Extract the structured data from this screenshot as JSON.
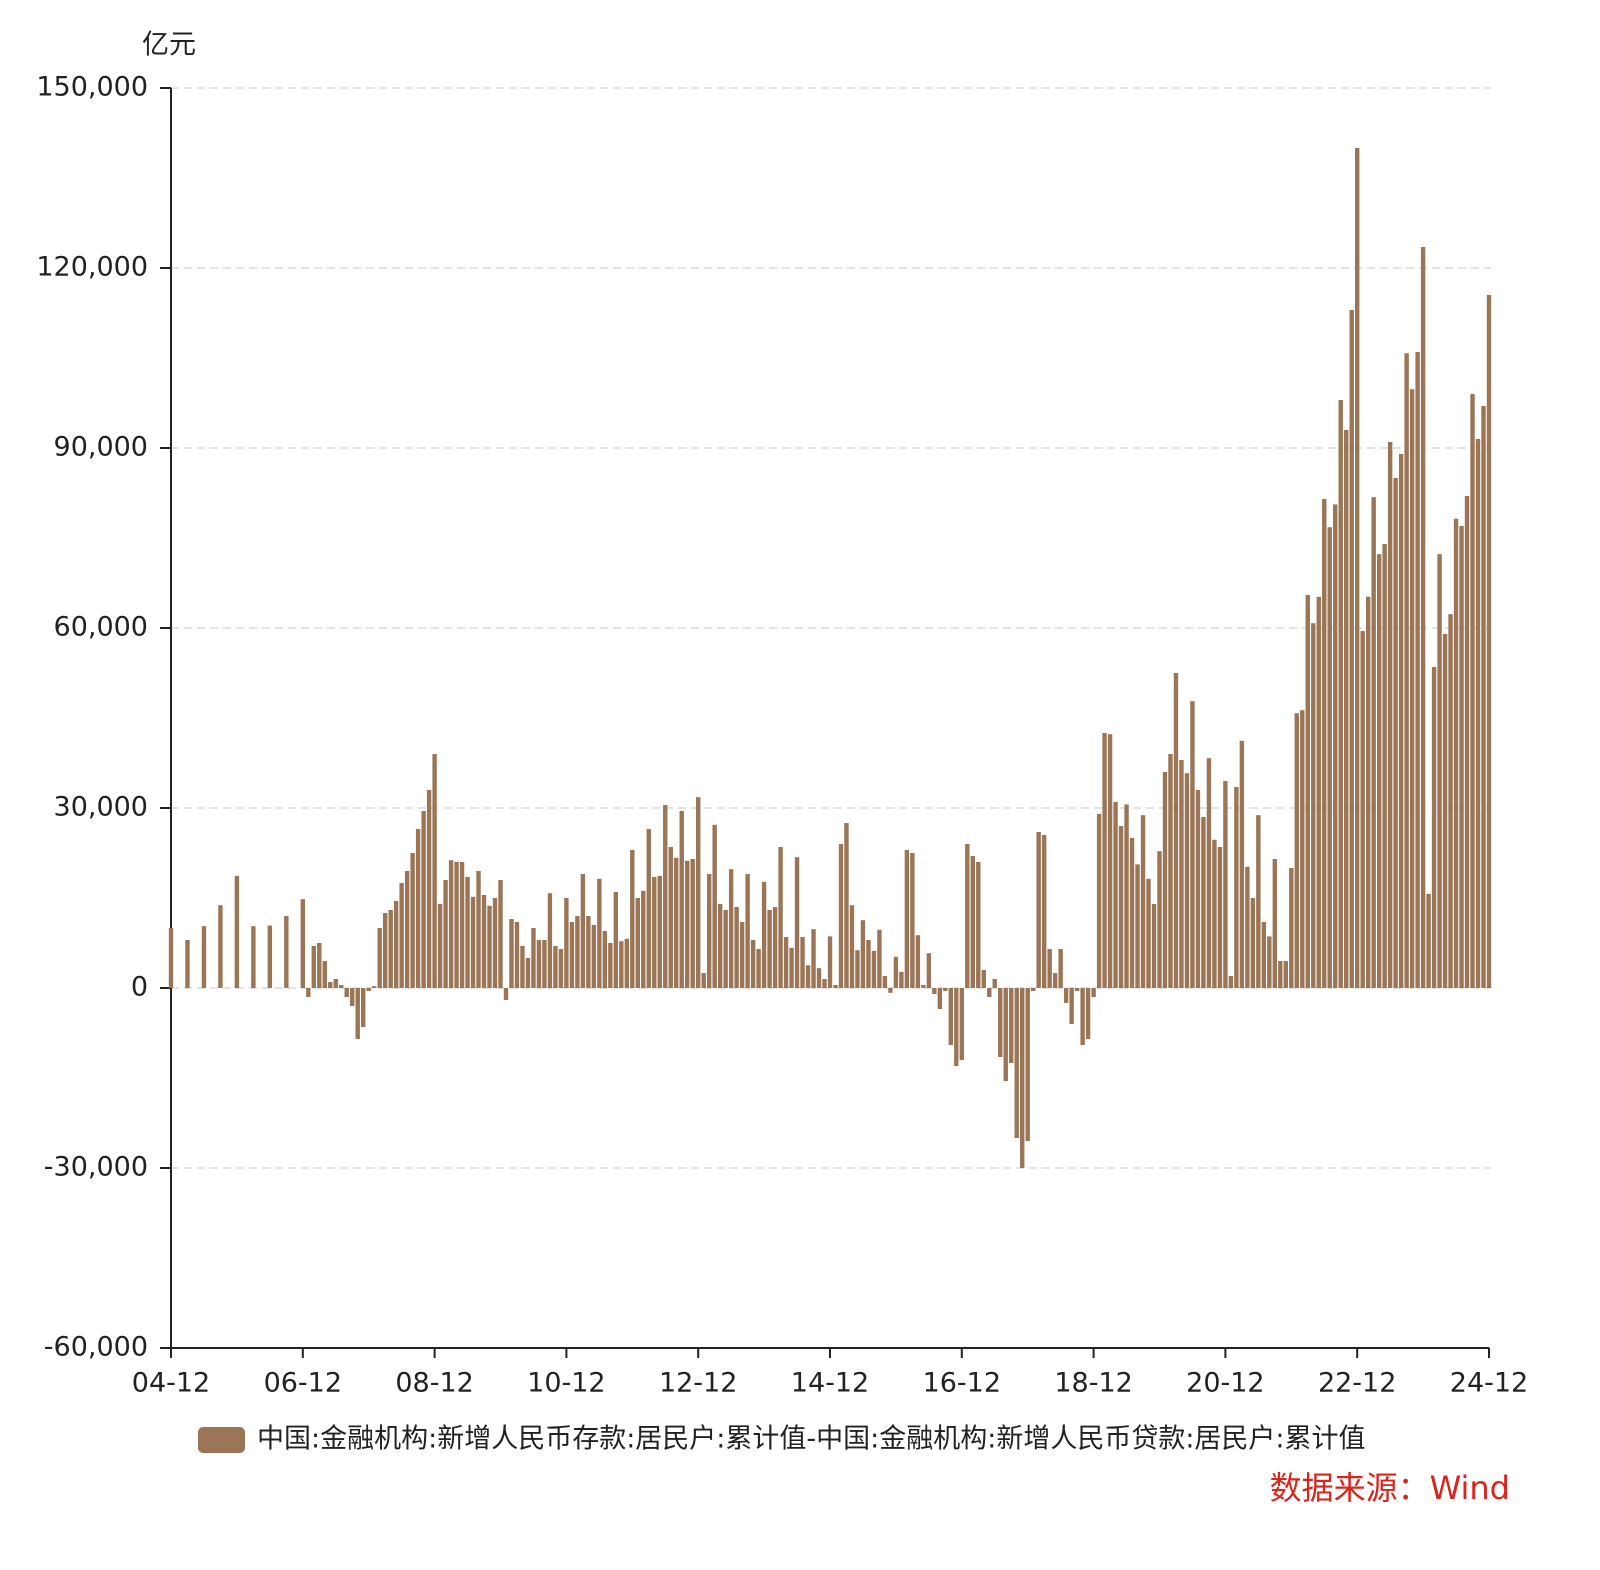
{
  "chart_data": {
    "type": "bar",
    "y_label": "亿元",
    "source": "数据来源：Wind",
    "categories": [
      "04-12",
      null,
      null,
      null,
      null,
      null,
      null,
      null,
      null,
      null,
      null,
      null,
      null,
      null,
      null,
      null,
      null,
      null,
      null,
      null,
      null,
      null,
      null,
      null,
      "06-12",
      null,
      null,
      null,
      null,
      null,
      null,
      null,
      null,
      null,
      null,
      null,
      null,
      null,
      null,
      null,
      null,
      null,
      null,
      null,
      null,
      null,
      null,
      null,
      "08-12",
      null,
      null,
      null,
      null,
      null,
      null,
      null,
      null,
      null,
      null,
      null,
      null,
      null,
      null,
      null,
      null,
      null,
      null,
      null,
      null,
      null,
      null,
      null,
      "10-12",
      null,
      null,
      null,
      null,
      null,
      null,
      null,
      null,
      null,
      null,
      null,
      null,
      null,
      null,
      null,
      null,
      null,
      null,
      null,
      null,
      null,
      null,
      null,
      "12-12",
      null,
      null,
      null,
      null,
      null,
      null,
      null,
      null,
      null,
      null,
      null,
      null,
      null,
      null,
      null,
      null,
      null,
      null,
      null,
      null,
      null,
      null,
      null,
      "14-12",
      null,
      null,
      null,
      null,
      null,
      null,
      null,
      null,
      null,
      null,
      null,
      null,
      null,
      null,
      null,
      null,
      null,
      null,
      null,
      null,
      null,
      null,
      null,
      "16-12",
      null,
      null,
      null,
      null,
      null,
      null,
      null,
      null,
      null,
      null,
      null,
      null,
      null,
      null,
      null,
      null,
      null,
      null,
      null,
      null,
      null,
      null,
      null,
      "18-12",
      null,
      null,
      null,
      null,
      null,
      null,
      null,
      null,
      null,
      null,
      null,
      null,
      null,
      null,
      null,
      null,
      null,
      null,
      null,
      null,
      null,
      null,
      null,
      "20-12",
      null,
      null,
      null,
      null,
      null,
      null,
      null,
      null,
      null,
      null,
      null,
      null,
      null,
      null,
      null,
      null,
      null,
      null,
      null,
      null,
      null,
      null,
      null,
      "22-12",
      null,
      null,
      null,
      null,
      null,
      null,
      null,
      null,
      null,
      null,
      null,
      null,
      null,
      null,
      null,
      null,
      null,
      null,
      null,
      null,
      null,
      null,
      null,
      "24-12"
    ],
    "series": [
      {
        "name": "中国:金融机构:新增人民币存款:居民户:累计值-中国:金融机构:新增人民币贷款:居民户:累计值",
        "color": "#9a7556",
        "values": [
          10000,
          null,
          null,
          8000,
          null,
          null,
          10300,
          null,
          null,
          13800,
          null,
          null,
          18700,
          null,
          null,
          10300,
          null,
          null,
          10400,
          null,
          null,
          12000,
          null,
          null,
          14800,
          -1500,
          7000,
          7500,
          4500,
          1000,
          1500,
          500,
          -1500,
          -3000,
          -8500,
          -6500,
          -500,
          300,
          10000,
          12500,
          13000,
          14500,
          17500,
          19500,
          22500,
          26500,
          29500,
          33000,
          39000,
          14000,
          18000,
          21300,
          21000,
          21000,
          18500,
          15200,
          19500,
          15500,
          13700,
          15000,
          18000,
          -2000,
          11500,
          11000,
          7000,
          5000,
          10000,
          8000,
          8000,
          15800,
          7000,
          6500,
          15000,
          11000,
          12000,
          19000,
          12000,
          10500,
          18200,
          9500,
          7500,
          16000,
          7800,
          8200,
          23000,
          15000,
          16200,
          26500,
          18500,
          18700,
          30500,
          23500,
          21700,
          29500,
          21200,
          21500,
          31800,
          2500,
          19000,
          27200,
          14000,
          13000,
          19800,
          13500,
          11000,
          19000,
          8000,
          6500,
          17700,
          13000,
          13500,
          23500,
          8500,
          6700,
          21800,
          8500,
          3800,
          9800,
          3300,
          1500,
          8600,
          500,
          24000,
          27500,
          13800,
          6300,
          11300,
          8000,
          6200,
          9700,
          2000,
          -800,
          5200,
          2700,
          23000,
          22500,
          8800,
          500,
          5800,
          -1000,
          -3500,
          -500,
          -9500,
          -13000,
          -12000,
          24000,
          22000,
          21000,
          3000,
          -1500,
          1500,
          -11500,
          -15500,
          -12500,
          -25000,
          -30000,
          -25500,
          -500,
          26000,
          25500,
          6500,
          2500,
          6500,
          -2500,
          -6000,
          -500,
          -9500,
          -8500,
          -1500,
          29000,
          42500,
          42300,
          31000,
          27000,
          30600,
          25000,
          20600,
          28800,
          18200,
          14000,
          22800,
          36000,
          39000,
          52500,
          38000,
          35800,
          47800,
          33000,
          28500,
          38300,
          24700,
          23500,
          34500,
          2000,
          33500,
          41200,
          20200,
          15000,
          28800,
          11000,
          8600,
          21500,
          4500,
          4500,
          20000,
          45800,
          46300,
          65500,
          60800,
          65200,
          81500,
          76800,
          80600,
          98000,
          93000,
          113000,
          140000,
          59500,
          65200,
          81800,
          72300,
          74000,
          91000,
          85000,
          89000,
          105800,
          99800,
          106000,
          123500,
          15700,
          53500,
          72300,
          59000,
          62300,
          78200,
          77000,
          82000,
          99000,
          91500,
          97000,
          115500
        ]
      }
    ],
    "ylim": [
      -60000,
      150000
    ],
    "yticks": [
      {
        "value": -60000,
        "label": "-60,000"
      },
      {
        "value": -30000,
        "label": "-30,000"
      },
      0,
      {
        "value": 30000,
        "label": "30,000"
      },
      {
        "value": 60000,
        "label": "60,000"
      },
      {
        "value": 90000,
        "label": "90,000"
      },
      {
        "value": 120000,
        "label": "120,000"
      },
      {
        "value": 150000,
        "label": "150,000"
      }
    ],
    "grid": true,
    "legend": "bottom"
  }
}
